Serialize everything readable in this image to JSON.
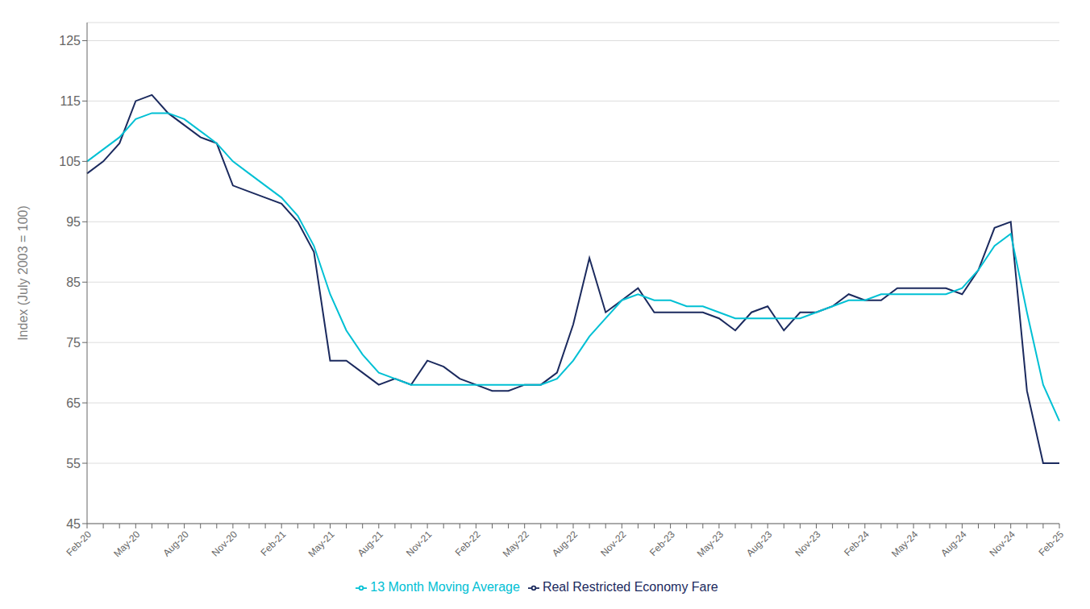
{
  "chart_data": {
    "type": "line",
    "ylabel": "Index (July 2003 = 100)",
    "categories": [
      "Feb-20",
      null,
      null,
      "May-20",
      null,
      null,
      "Aug-20",
      null,
      null,
      "Nov-20",
      null,
      null,
      "Feb-21",
      null,
      null,
      "May-21",
      null,
      null,
      "Aug-21",
      null,
      null,
      "Nov-21",
      null,
      null,
      "Feb-22",
      null,
      null,
      "May-22",
      null,
      null,
      "Aug-22",
      null,
      null,
      "Nov-22",
      null,
      null,
      "Feb-23",
      null,
      null,
      "May-23",
      null,
      null,
      "Aug-23",
      null,
      null,
      "Nov-23",
      null,
      null,
      "Feb-24",
      null,
      null,
      "May-24",
      null,
      null,
      "Aug-24",
      null,
      null,
      "Nov-24",
      null,
      null,
      "Feb-25"
    ],
    "series": [
      {
        "name": "Real Restricted Economy Fare",
        "color": "#1b2a5e",
        "values": [
          103,
          105,
          108,
          115,
          116,
          113,
          111,
          109,
          108,
          101,
          100,
          99,
          98,
          95,
          90,
          72,
          72,
          70,
          68,
          69,
          68,
          72,
          71,
          69,
          68,
          67,
          67,
          68,
          68,
          70,
          78,
          89,
          80,
          82,
          84,
          80,
          80,
          80,
          80,
          79,
          77,
          80,
          81,
          77,
          80,
          80,
          81,
          83,
          82,
          82,
          84,
          84,
          84,
          84,
          83,
          87,
          94,
          95,
          67,
          55,
          55
        ]
      },
      {
        "name": "13 Month Moving Average",
        "color": "#00c0d4",
        "values": [
          105,
          107,
          109,
          112,
          113,
          113,
          112,
          110,
          108,
          105,
          103,
          101,
          99,
          96,
          91,
          83,
          77,
          73,
          70,
          69,
          68,
          68,
          68,
          68,
          68,
          68,
          68,
          68,
          68,
          69,
          72,
          76,
          79,
          82,
          83,
          82,
          82,
          81,
          81,
          80,
          79,
          79,
          79,
          79,
          79,
          80,
          81,
          82,
          82,
          83,
          83,
          83,
          83,
          83,
          84,
          87,
          91,
          93,
          80,
          68,
          62
        ]
      }
    ],
    "ylim": [
      45,
      128
    ],
    "yticks": [
      45,
      55,
      65,
      75,
      85,
      95,
      105,
      115,
      125
    ],
    "grid": true,
    "legend": "bottom"
  }
}
